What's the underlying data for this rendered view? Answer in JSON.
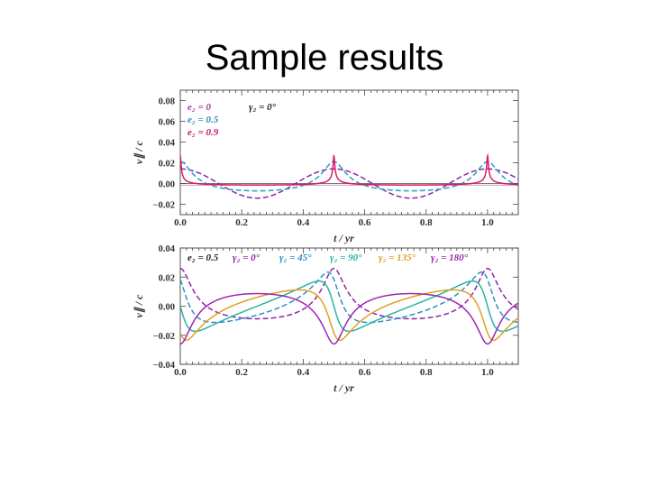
{
  "slide": {
    "title": "Sample results"
  },
  "chart_data": [
    {
      "type": "line",
      "xlabel": "t / yr",
      "ylabel": "v∥ / c",
      "xlim": [
        0.0,
        1.1
      ],
      "ylim": [
        -0.03,
        0.09
      ],
      "xticks": [
        "0.0",
        "0.2",
        "0.4",
        "0.6",
        "0.8",
        "1.0"
      ],
      "yticks": [
        "0.08",
        "0.06",
        "0.04",
        "0.02",
        "0.00",
        "−0.02"
      ],
      "legend": [
        {
          "text": "e₂ = 0",
          "color": "#a23a9e"
        },
        {
          "text": "e₂ = 0.5",
          "color": "#2c8fc4"
        },
        {
          "text": "e₂ = 0.9",
          "color": "#c2186b"
        },
        {
          "text": "γ₂ = 0°",
          "color": "#222222"
        }
      ],
      "series": [
        {
          "name": "e2 = 0",
          "ecc": 0.0,
          "gamma_deg": 0,
          "amp": 0.0141,
          "color": "#8e24aa",
          "dash": "6,3"
        },
        {
          "name": "e2 = 0.5",
          "ecc": 0.5,
          "gamma_deg": 0,
          "amp": 0.0141,
          "color": "#26a0c4",
          "dash": "6,3"
        },
        {
          "name": "e2 = 0.9",
          "ecc": 0.9,
          "gamma_deg": 0,
          "amp": 0.0141,
          "color": "#d81b60",
          "dash": ""
        }
      ]
    },
    {
      "type": "line",
      "xlabel": "t / yr",
      "ylabel": "v∥ / c",
      "xlim": [
        0.0,
        1.1
      ],
      "ylim": [
        -0.04,
        0.04
      ],
      "xticks": [
        "0.0",
        "0.2",
        "0.4",
        "0.6",
        "0.8",
        "1.0"
      ],
      "yticks": [
        "0.04",
        "0.02",
        "0.00",
        "−0.02",
        "−0.04"
      ],
      "legend": [
        {
          "text": "e₂ = 0.5",
          "color": "#222222"
        },
        {
          "text": "γ₂ = 0°",
          "color": "#8e24aa"
        },
        {
          "text": "γ₂ = 45°",
          "color": "#2c8fc4"
        },
        {
          "text": "γ₂ = 90°",
          "color": "#26b5a5"
        },
        {
          "text": "γ₂ = 135°",
          "color": "#e0a020"
        },
        {
          "text": "γ₂ = 180°",
          "color": "#9c27b0"
        }
      ],
      "series": [
        {
          "name": "gamma2 = 0°",
          "ecc": 0.5,
          "gamma_deg": 0,
          "amp": 0.0173,
          "color": "#8e24aa",
          "dash": "6,3"
        },
        {
          "name": "gamma2 = 45°",
          "ecc": 0.5,
          "gamma_deg": 45,
          "amp": 0.0173,
          "color": "#2c8fc4",
          "dash": "6,3"
        },
        {
          "name": "gamma2 = 90°",
          "ecc": 0.5,
          "gamma_deg": 90,
          "amp": 0.0173,
          "color": "#26b5a5",
          "dash": ""
        },
        {
          "name": "gamma2 = 135°",
          "ecc": 0.5,
          "gamma_deg": 135,
          "amp": 0.0173,
          "color": "#e0a020",
          "dash": ""
        },
        {
          "name": "gamma2 = 180°",
          "ecc": 0.5,
          "gamma_deg": 180,
          "amp": 0.0173,
          "color": "#9c27b0",
          "dash": ""
        }
      ]
    }
  ]
}
